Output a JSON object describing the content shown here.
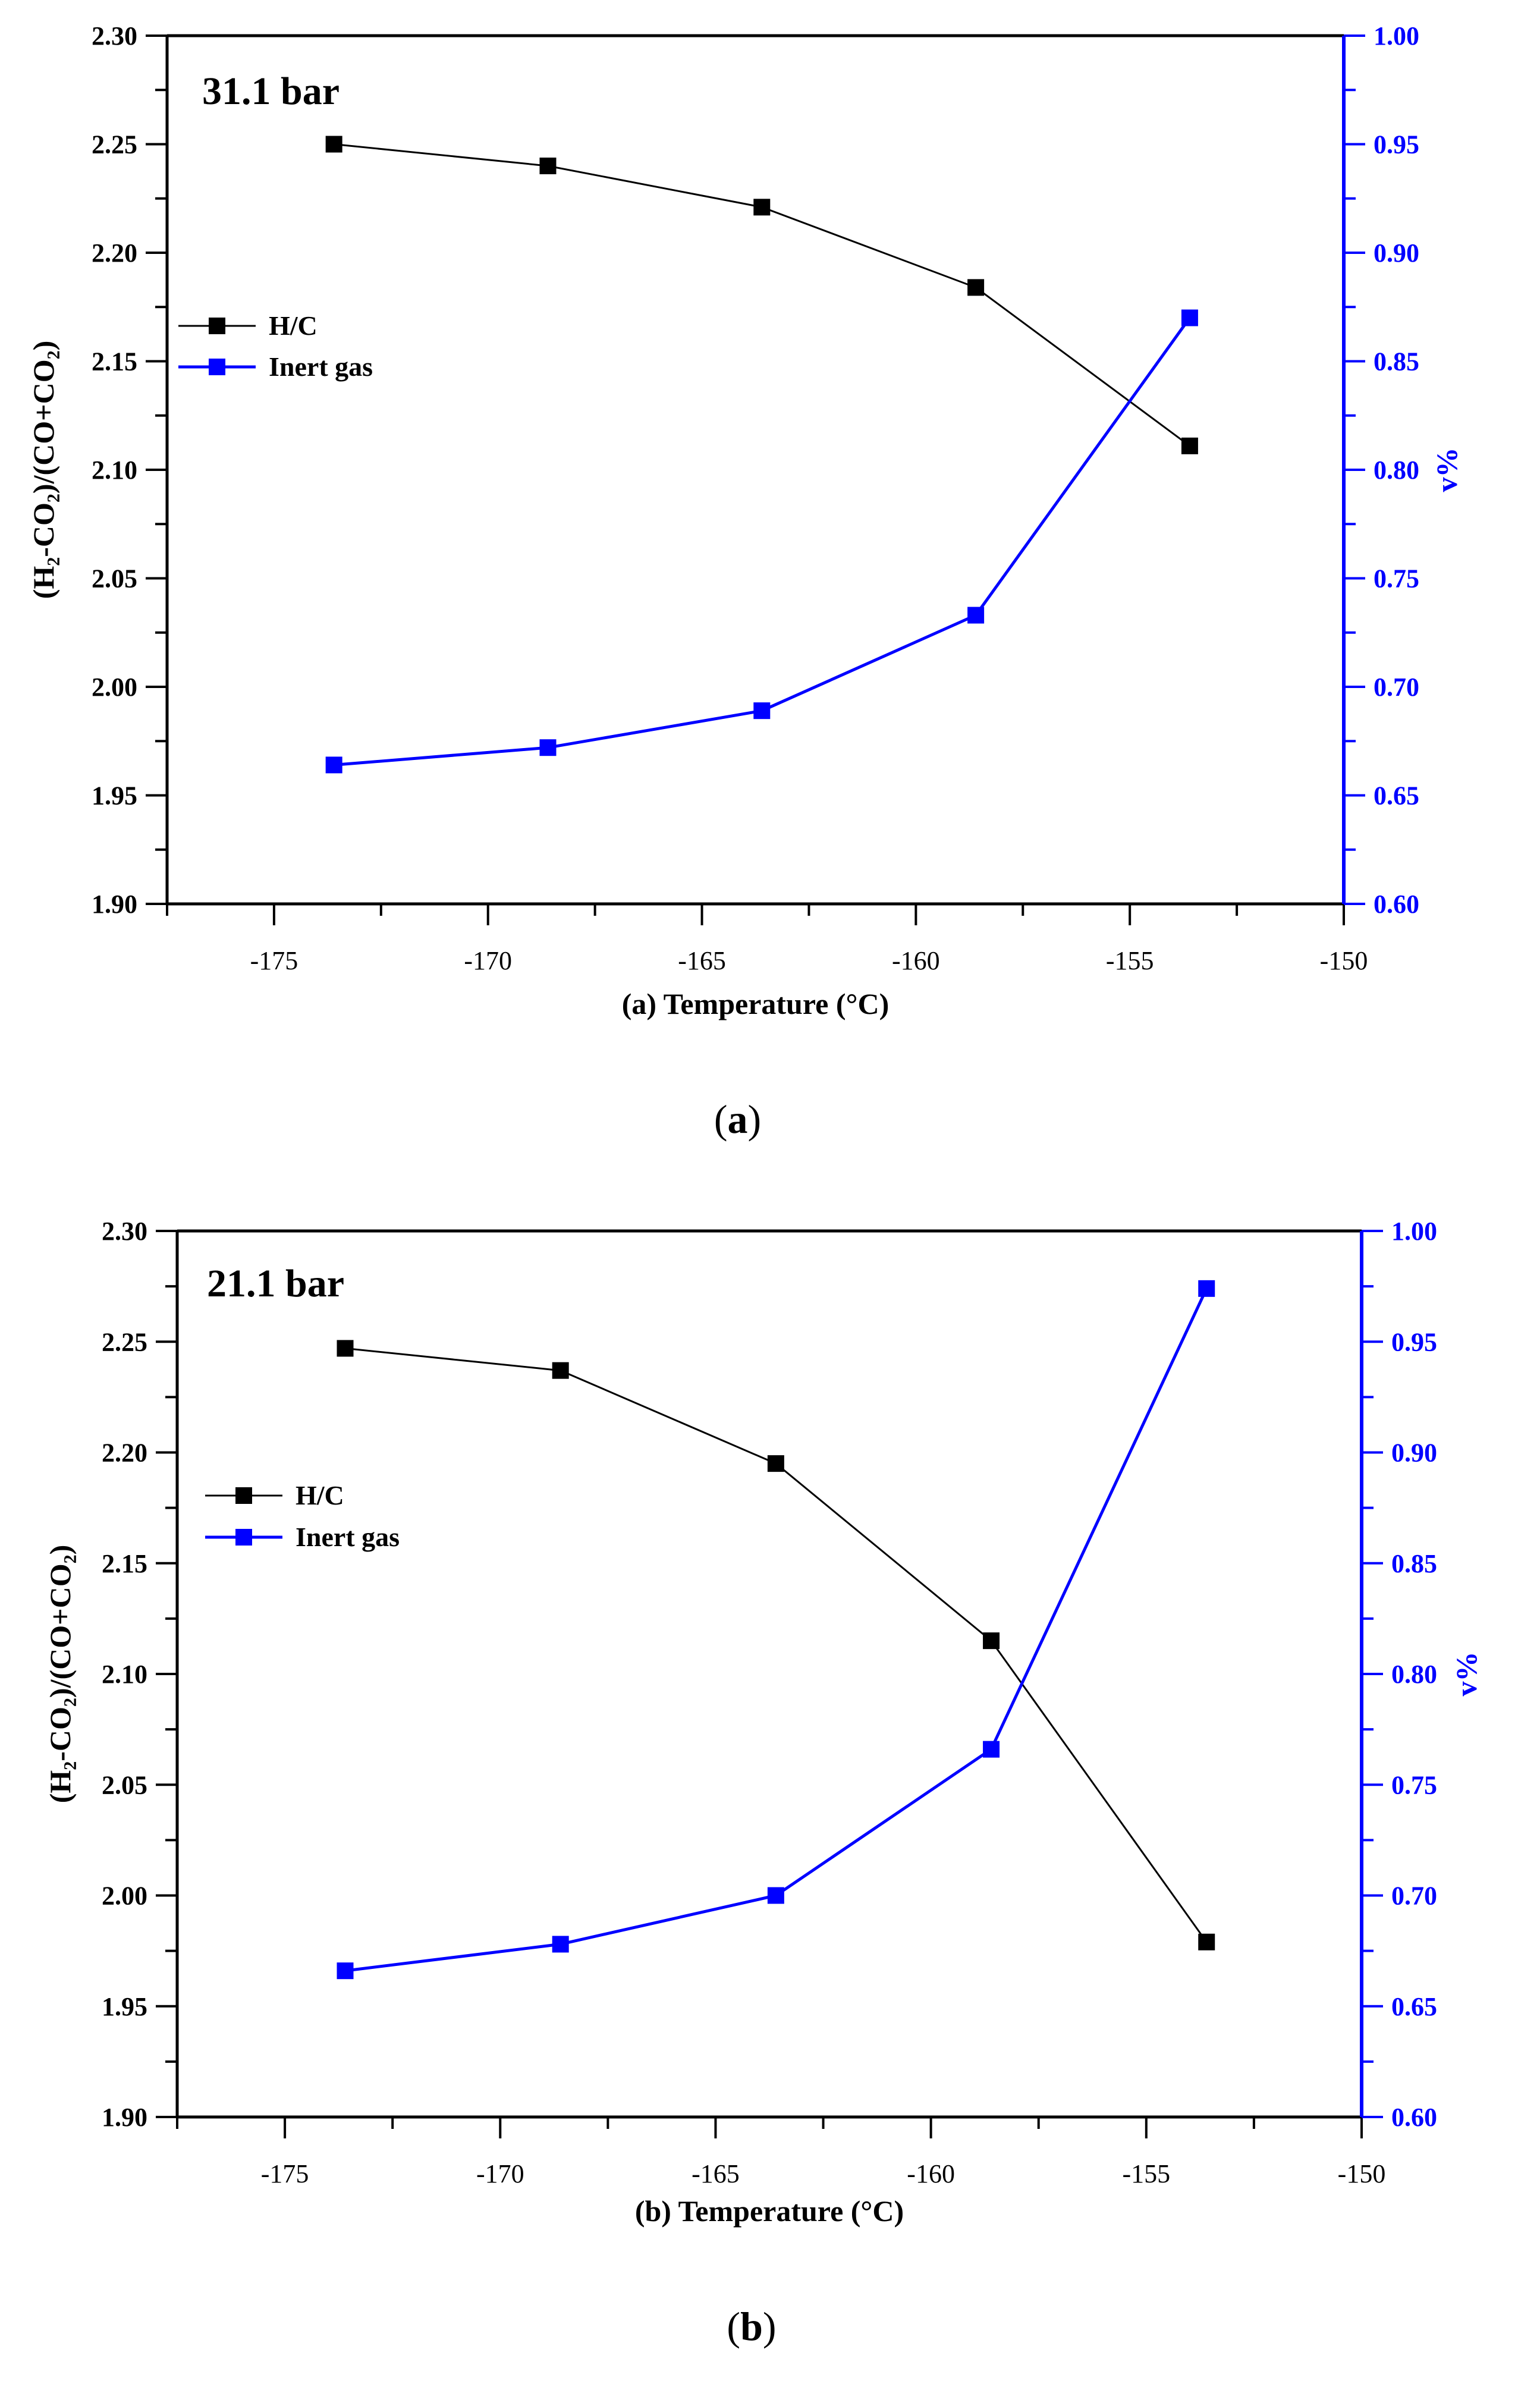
{
  "chart_data": [
    {
      "type": "line",
      "panel_label": "a",
      "annotation": "31.1 bar",
      "title": "",
      "xlabel": "(a) Temperature (°C)",
      "ylabel_left": "(H₂-CO₂)/(CO+CO₂)",
      "ylabel_right": "v%",
      "xlim": [
        -177.5,
        -150
      ],
      "ylim_left": [
        1.9,
        2.3
      ],
      "ylim_right": [
        0.6,
        1.0
      ],
      "xticks": [
        "-175",
        "-170",
        "-165",
        "-160",
        "-155",
        "-150"
      ],
      "yticks_left": [
        "1.90",
        "1.95",
        "2.00",
        "2.05",
        "2.10",
        "2.15",
        "2.20",
        "2.25",
        "2.30"
      ],
      "yticks_right": [
        "0.60",
        "0.65",
        "0.70",
        "0.75",
        "0.80",
        "0.85",
        "0.90",
        "0.95",
        "1.00"
      ],
      "legend_position": "upper-left",
      "series": [
        {
          "name": "H/C",
          "axis": "left",
          "color": "#000000",
          "x": [
            -173.6,
            -168.6,
            -163.6,
            -158.6,
            -153.6
          ],
          "values": [
            2.25,
            2.24,
            2.221,
            2.184,
            2.111
          ]
        },
        {
          "name": "Inert gas",
          "axis": "right",
          "color": "#0000ff",
          "x": [
            -173.6,
            -168.6,
            -163.6,
            -158.6,
            -153.6
          ],
          "values": [
            0.664,
            0.672,
            0.689,
            0.733,
            0.87
          ]
        }
      ]
    },
    {
      "type": "line",
      "panel_label": "b",
      "annotation": "21.1 bar",
      "title": "",
      "xlabel": "(b) Temperature (°C)",
      "ylabel_left": "(H₂-CO₂)/(CO+CO₂)",
      "ylabel_right": "v%",
      "xlim": [
        -177.5,
        -150
      ],
      "ylim_left": [
        1.9,
        2.3
      ],
      "ylim_right": [
        0.6,
        1.0
      ],
      "xticks": [
        "-175",
        "-170",
        "-165",
        "-160",
        "-155",
        "-150"
      ],
      "yticks_left": [
        "1.90",
        "1.95",
        "2.00",
        "2.05",
        "2.10",
        "2.15",
        "2.20",
        "2.25",
        "2.30"
      ],
      "yticks_right": [
        "0.60",
        "0.65",
        "0.70",
        "0.75",
        "0.80",
        "0.85",
        "0.90",
        "0.95",
        "1.00"
      ],
      "legend_position": "upper-left",
      "series": [
        {
          "name": "H/C",
          "axis": "left",
          "color": "#000000",
          "x": [
            -173.6,
            -168.6,
            -163.6,
            -158.6,
            -153.6
          ],
          "values": [
            2.247,
            2.237,
            2.195,
            2.115,
            1.979
          ]
        },
        {
          "name": "Inert gas",
          "axis": "right",
          "color": "#0000ff",
          "x": [
            -173.6,
            -168.6,
            -163.6,
            -158.6,
            -153.6
          ],
          "values": [
            0.666,
            0.678,
            0.7,
            0.766,
            0.974
          ]
        }
      ]
    }
  ]
}
